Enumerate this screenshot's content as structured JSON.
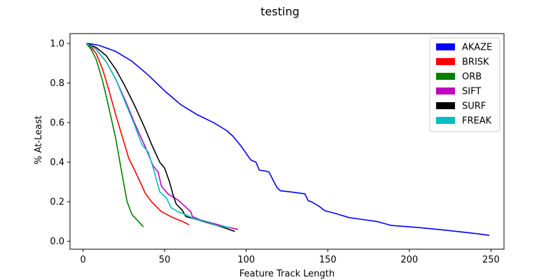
{
  "chart_data": {
    "type": "line",
    "title": "testing",
    "xlabel": "Feature Track Length",
    "ylabel": "% At-Least",
    "xlim": [
      -8,
      258
    ],
    "ylim": [
      -0.04,
      1.05
    ],
    "xticks": [
      0,
      50,
      100,
      150,
      200,
      250
    ],
    "yticks": [
      0.0,
      0.2,
      0.4,
      0.6,
      0.8,
      1.0
    ],
    "xtick_labels": [
      "0",
      "50",
      "100",
      "150",
      "200",
      "250"
    ],
    "ytick_labels": [
      "0.0",
      "0.2",
      "0.4",
      "0.6",
      "0.8",
      "1.0"
    ],
    "grid": false,
    "legend_position": "top-right",
    "series": [
      {
        "name": "AKAZE",
        "color": "#0000ff",
        "points": [
          [
            2,
            1.0
          ],
          [
            5,
            0.998
          ],
          [
            10,
            0.99
          ],
          [
            20,
            0.96
          ],
          [
            30,
            0.91
          ],
          [
            40,
            0.84
          ],
          [
            50,
            0.76
          ],
          [
            60,
            0.69
          ],
          [
            70,
            0.64
          ],
          [
            80,
            0.6
          ],
          [
            88,
            0.56
          ],
          [
            92,
            0.53
          ],
          [
            97,
            0.48
          ],
          [
            102,
            0.42
          ],
          [
            103,
            0.41
          ],
          [
            106,
            0.4
          ],
          [
            108,
            0.36
          ],
          [
            112,
            0.355
          ],
          [
            114,
            0.35
          ],
          [
            117,
            0.3
          ],
          [
            119,
            0.27
          ],
          [
            121,
            0.255
          ],
          [
            127,
            0.25
          ],
          [
            136,
            0.24
          ],
          [
            138,
            0.205
          ],
          [
            140,
            0.2
          ],
          [
            142,
            0.19
          ],
          [
            145,
            0.175
          ],
          [
            148,
            0.155
          ],
          [
            155,
            0.14
          ],
          [
            163,
            0.12
          ],
          [
            180,
            0.1
          ],
          [
            189,
            0.08
          ],
          [
            205,
            0.07
          ],
          [
            220,
            0.058
          ],
          [
            240,
            0.04
          ],
          [
            249,
            0.03
          ]
        ]
      },
      {
        "name": "BRISK",
        "color": "#ff0000",
        "points": [
          [
            2,
            1.0
          ],
          [
            5,
            0.98
          ],
          [
            8,
            0.95
          ],
          [
            12,
            0.87
          ],
          [
            16,
            0.76
          ],
          [
            20,
            0.64
          ],
          [
            24,
            0.53
          ],
          [
            28,
            0.42
          ],
          [
            31,
            0.37
          ],
          [
            35,
            0.3
          ],
          [
            38,
            0.245
          ],
          [
            42,
            0.2
          ],
          [
            48,
            0.15
          ],
          [
            55,
            0.12
          ],
          [
            61,
            0.1
          ],
          [
            65,
            0.083
          ]
        ]
      },
      {
        "name": "ORB",
        "color": "#008000",
        "points": [
          [
            2,
            1.0
          ],
          [
            5,
            0.97
          ],
          [
            8,
            0.92
          ],
          [
            12,
            0.81
          ],
          [
            16,
            0.67
          ],
          [
            20,
            0.52
          ],
          [
            23,
            0.38
          ],
          [
            25,
            0.29
          ],
          [
            27,
            0.2
          ],
          [
            30,
            0.135
          ],
          [
            37,
            0.073
          ]
        ]
      },
      {
        "name": "SIFT",
        "color": "#bf00bf",
        "points": [
          [
            2,
            1.0
          ],
          [
            8,
            0.97
          ],
          [
            14,
            0.91
          ],
          [
            20,
            0.82
          ],
          [
            26,
            0.71
          ],
          [
            32,
            0.59
          ],
          [
            38,
            0.48
          ],
          [
            43,
            0.38
          ],
          [
            46,
            0.35
          ],
          [
            48,
            0.28
          ],
          [
            52,
            0.24
          ],
          [
            58,
            0.21
          ],
          [
            62,
            0.18
          ],
          [
            66,
            0.15
          ],
          [
            67,
            0.125
          ],
          [
            72,
            0.108
          ],
          [
            80,
            0.09
          ],
          [
            88,
            0.072
          ],
          [
            95,
            0.06
          ]
        ]
      },
      {
        "name": "SURF",
        "color": "#000000",
        "points": [
          [
            2,
            1.0
          ],
          [
            8,
            0.98
          ],
          [
            14,
            0.94
          ],
          [
            20,
            0.87
          ],
          [
            26,
            0.78
          ],
          [
            32,
            0.68
          ],
          [
            38,
            0.57
          ],
          [
            42,
            0.49
          ],
          [
            47,
            0.4
          ],
          [
            50,
            0.37
          ],
          [
            53,
            0.3
          ],
          [
            55,
            0.24
          ],
          [
            57,
            0.19
          ],
          [
            61,
            0.155
          ],
          [
            63,
            0.125
          ],
          [
            70,
            0.11
          ],
          [
            78,
            0.09
          ],
          [
            86,
            0.07
          ],
          [
            93,
            0.05
          ]
        ]
      },
      {
        "name": "FREAK",
        "color": "#00bfbf",
        "points": [
          [
            2,
            1.0
          ],
          [
            8,
            0.97
          ],
          [
            14,
            0.91
          ],
          [
            20,
            0.82
          ],
          [
            26,
            0.7
          ],
          [
            31,
            0.6
          ],
          [
            36,
            0.49
          ],
          [
            40,
            0.45
          ],
          [
            43,
            0.37
          ],
          [
            45,
            0.31
          ],
          [
            47,
            0.25
          ],
          [
            51,
            0.22
          ],
          [
            54,
            0.17
          ],
          [
            58,
            0.15
          ],
          [
            63,
            0.135
          ],
          [
            67,
            0.118
          ],
          [
            75,
            0.1
          ],
          [
            82,
            0.08
          ],
          [
            90,
            0.07
          ]
        ]
      }
    ]
  }
}
